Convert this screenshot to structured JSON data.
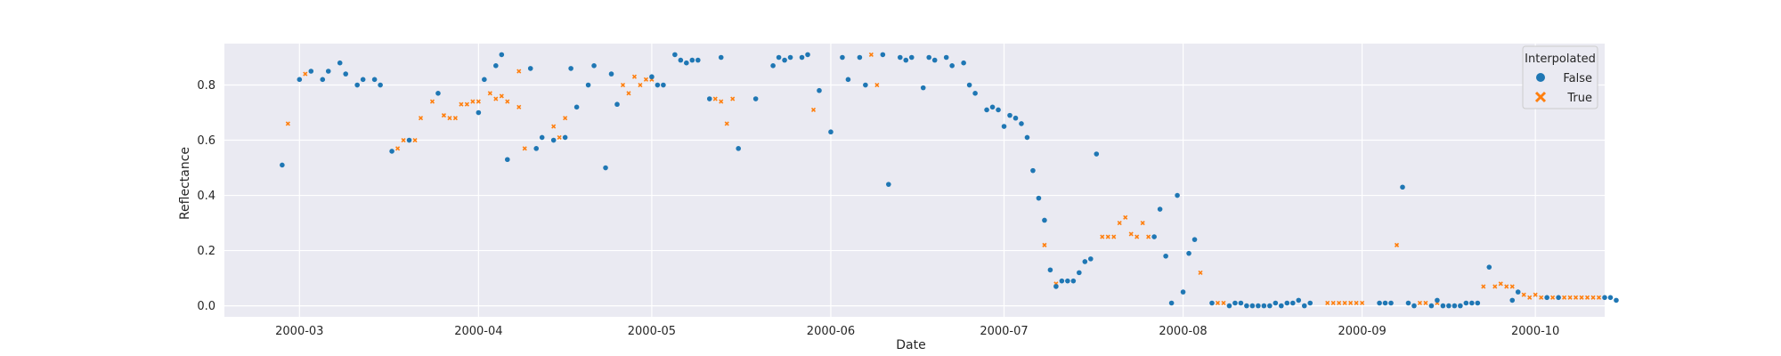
{
  "chart_data": {
    "type": "scatter",
    "title": "",
    "xlabel": "Date",
    "ylabel": "Reflectance",
    "x_ticks": [
      "2000-03",
      "2000-04",
      "2000-05",
      "2000-06",
      "2000-07",
      "2000-08",
      "2000-09",
      "2000-10"
    ],
    "y_ticks": [
      "0.0",
      "0.2",
      "0.4",
      "0.6",
      "0.8"
    ],
    "xlim": [
      "2000-02-17",
      "2000-10-13"
    ],
    "ylim": [
      -0.04,
      0.95
    ],
    "grid": true,
    "legend": {
      "title": "Interpolated",
      "placement": "top-right"
    },
    "series": [
      {
        "name": "False",
        "color": "#1f77b4",
        "marker": "circle",
        "points": [
          [
            "2000-02-27",
            0.51
          ],
          [
            "2000-03-01",
            0.82
          ],
          [
            "2000-03-03",
            0.85
          ],
          [
            "2000-03-05",
            0.82
          ],
          [
            "2000-03-06",
            0.85
          ],
          [
            "2000-03-08",
            0.88
          ],
          [
            "2000-03-09",
            0.84
          ],
          [
            "2000-03-11",
            0.8
          ],
          [
            "2000-03-12",
            0.82
          ],
          [
            "2000-03-14",
            0.82
          ],
          [
            "2000-03-15",
            0.8
          ],
          [
            "2000-03-17",
            0.56
          ],
          [
            "2000-03-20",
            0.6
          ],
          [
            "2000-03-25",
            0.77
          ],
          [
            "2000-04-01",
            0.7
          ],
          [
            "2000-04-02",
            0.82
          ],
          [
            "2000-04-04",
            0.87
          ],
          [
            "2000-04-05",
            0.91
          ],
          [
            "2000-04-06",
            0.53
          ],
          [
            "2000-04-10",
            0.86
          ],
          [
            "2000-04-11",
            0.57
          ],
          [
            "2000-04-12",
            0.61
          ],
          [
            "2000-04-14",
            0.6
          ],
          [
            "2000-04-16",
            0.61
          ],
          [
            "2000-04-17",
            0.86
          ],
          [
            "2000-04-18",
            0.72
          ],
          [
            "2000-04-20",
            0.8
          ],
          [
            "2000-04-21",
            0.87
          ],
          [
            "2000-04-23",
            0.5
          ],
          [
            "2000-04-24",
            0.84
          ],
          [
            "2000-04-25",
            0.73
          ],
          [
            "2000-05-01",
            0.83
          ],
          [
            "2000-05-02",
            0.8
          ],
          [
            "2000-05-03",
            0.8
          ],
          [
            "2000-05-05",
            0.91
          ],
          [
            "2000-05-06",
            0.89
          ],
          [
            "2000-05-07",
            0.88
          ],
          [
            "2000-05-08",
            0.89
          ],
          [
            "2000-05-09",
            0.89
          ],
          [
            "2000-05-11",
            0.75
          ],
          [
            "2000-05-13",
            0.9
          ],
          [
            "2000-05-16",
            0.57
          ],
          [
            "2000-05-19",
            0.75
          ],
          [
            "2000-05-22",
            0.87
          ],
          [
            "2000-05-23",
            0.9
          ],
          [
            "2000-05-24",
            0.89
          ],
          [
            "2000-05-25",
            0.9
          ],
          [
            "2000-05-27",
            0.9
          ],
          [
            "2000-05-28",
            0.91
          ],
          [
            "2000-05-30",
            0.78
          ],
          [
            "2000-06-01",
            0.63
          ],
          [
            "2000-06-03",
            0.9
          ],
          [
            "2000-06-04",
            0.82
          ],
          [
            "2000-06-06",
            0.9
          ],
          [
            "2000-06-07",
            0.8
          ],
          [
            "2000-06-10",
            0.91
          ],
          [
            "2000-06-11",
            0.44
          ],
          [
            "2000-06-13",
            0.9
          ],
          [
            "2000-06-14",
            0.89
          ],
          [
            "2000-06-15",
            0.9
          ],
          [
            "2000-06-17",
            0.79
          ],
          [
            "2000-06-18",
            0.9
          ],
          [
            "2000-06-19",
            0.89
          ],
          [
            "2000-06-21",
            0.9
          ],
          [
            "2000-06-22",
            0.87
          ],
          [
            "2000-06-24",
            0.88
          ],
          [
            "2000-06-25",
            0.8
          ],
          [
            "2000-06-26",
            0.77
          ],
          [
            "2000-06-28",
            0.71
          ],
          [
            "2000-06-29",
            0.72
          ],
          [
            "2000-06-30",
            0.71
          ],
          [
            "2000-07-01",
            0.65
          ],
          [
            "2000-07-02",
            0.69
          ],
          [
            "2000-07-03",
            0.68
          ],
          [
            "2000-07-04",
            0.66
          ],
          [
            "2000-07-05",
            0.61
          ],
          [
            "2000-07-06",
            0.49
          ],
          [
            "2000-07-07",
            0.39
          ],
          [
            "2000-07-08",
            0.31
          ],
          [
            "2000-07-09",
            0.13
          ],
          [
            "2000-07-10",
            0.07
          ],
          [
            "2000-07-11",
            0.09
          ],
          [
            "2000-07-12",
            0.09
          ],
          [
            "2000-07-13",
            0.09
          ],
          [
            "2000-07-14",
            0.12
          ],
          [
            "2000-07-15",
            0.16
          ],
          [
            "2000-07-16",
            0.17
          ],
          [
            "2000-07-17",
            0.55
          ],
          [
            "2000-07-27",
            0.25
          ],
          [
            "2000-07-28",
            0.35
          ],
          [
            "2000-07-29",
            0.18
          ],
          [
            "2000-07-30",
            0.01
          ],
          [
            "2000-07-31",
            0.4
          ],
          [
            "2000-08-01",
            0.05
          ],
          [
            "2000-08-02",
            0.19
          ],
          [
            "2000-08-03",
            0.24
          ],
          [
            "2000-08-06",
            0.01
          ],
          [
            "2000-08-09",
            0.0
          ],
          [
            "2000-08-10",
            0.01
          ],
          [
            "2000-08-11",
            0.01
          ],
          [
            "2000-08-12",
            0.0
          ],
          [
            "2000-08-13",
            0.0
          ],
          [
            "2000-08-14",
            0.0
          ],
          [
            "2000-08-15",
            0.0
          ],
          [
            "2000-08-16",
            0.0
          ],
          [
            "2000-08-17",
            0.01
          ],
          [
            "2000-08-18",
            0.0
          ],
          [
            "2000-08-19",
            0.01
          ],
          [
            "2000-08-20",
            0.01
          ],
          [
            "2000-08-21",
            0.02
          ],
          [
            "2000-08-22",
            0.0
          ],
          [
            "2000-08-23",
            0.01
          ],
          [
            "2000-09-04",
            0.01
          ],
          [
            "2000-09-05",
            0.01
          ],
          [
            "2000-09-06",
            0.01
          ],
          [
            "2000-09-08",
            0.43
          ],
          [
            "2000-09-09",
            0.01
          ],
          [
            "2000-09-10",
            0.0
          ],
          [
            "2000-09-13",
            0.0
          ],
          [
            "2000-09-14",
            0.02
          ],
          [
            "2000-09-15",
            0.0
          ],
          [
            "2000-09-16",
            0.0
          ],
          [
            "2000-09-17",
            0.0
          ],
          [
            "2000-09-18",
            0.0
          ],
          [
            "2000-09-19",
            0.01
          ],
          [
            "2000-09-20",
            0.01
          ],
          [
            "2000-09-21",
            0.01
          ],
          [
            "2000-09-23",
            0.14
          ],
          [
            "2000-09-27",
            0.02
          ],
          [
            "2000-09-28",
            0.05
          ],
          [
            "2000-10-03",
            0.03
          ],
          [
            "2000-10-05",
            0.03
          ],
          [
            "2000-10-13",
            0.03
          ],
          [
            "2000-10-14",
            0.03
          ],
          [
            "2000-10-15",
            0.02
          ]
        ]
      },
      {
        "name": "True",
        "color": "#ff7f0e",
        "marker": "x",
        "points": [
          [
            "2000-02-28",
            0.66
          ],
          [
            "2000-03-02",
            0.84
          ],
          [
            "2000-03-18",
            0.57
          ],
          [
            "2000-03-19",
            0.6
          ],
          [
            "2000-03-21",
            0.6
          ],
          [
            "2000-03-22",
            0.68
          ],
          [
            "2000-03-24",
            0.74
          ],
          [
            "2000-03-26",
            0.69
          ],
          [
            "2000-03-27",
            0.68
          ],
          [
            "2000-03-28",
            0.68
          ],
          [
            "2000-03-29",
            0.73
          ],
          [
            "2000-03-30",
            0.73
          ],
          [
            "2000-03-31",
            0.74
          ],
          [
            "2000-04-01",
            0.74
          ],
          [
            "2000-04-03",
            0.77
          ],
          [
            "2000-04-04",
            0.75
          ],
          [
            "2000-04-05",
            0.76
          ],
          [
            "2000-04-06",
            0.74
          ],
          [
            "2000-04-08",
            0.72
          ],
          [
            "2000-04-08",
            0.85
          ],
          [
            "2000-04-09",
            0.57
          ],
          [
            "2000-04-14",
            0.65
          ],
          [
            "2000-04-15",
            0.61
          ],
          [
            "2000-04-16",
            0.68
          ],
          [
            "2000-04-26",
            0.8
          ],
          [
            "2000-04-27",
            0.77
          ],
          [
            "2000-04-28",
            0.83
          ],
          [
            "2000-04-29",
            0.8
          ],
          [
            "2000-04-30",
            0.82
          ],
          [
            "2000-05-01",
            0.82
          ],
          [
            "2000-05-12",
            0.75
          ],
          [
            "2000-05-13",
            0.74
          ],
          [
            "2000-05-14",
            0.66
          ],
          [
            "2000-05-15",
            0.75
          ],
          [
            "2000-05-29",
            0.71
          ],
          [
            "2000-06-08",
            0.91
          ],
          [
            "2000-06-09",
            0.8
          ],
          [
            "2000-07-08",
            0.22
          ],
          [
            "2000-07-10",
            0.08
          ],
          [
            "2000-07-18",
            0.25
          ],
          [
            "2000-07-19",
            0.25
          ],
          [
            "2000-07-20",
            0.25
          ],
          [
            "2000-07-21",
            0.3
          ],
          [
            "2000-07-22",
            0.32
          ],
          [
            "2000-07-23",
            0.26
          ],
          [
            "2000-07-24",
            0.25
          ],
          [
            "2000-07-25",
            0.3
          ],
          [
            "2000-07-26",
            0.25
          ],
          [
            "2000-08-04",
            0.12
          ],
          [
            "2000-08-07",
            0.01
          ],
          [
            "2000-08-08",
            0.01
          ],
          [
            "2000-08-26",
            0.01
          ],
          [
            "2000-08-27",
            0.01
          ],
          [
            "2000-08-28",
            0.01
          ],
          [
            "2000-08-29",
            0.01
          ],
          [
            "2000-08-30",
            0.01
          ],
          [
            "2000-08-31",
            0.01
          ],
          [
            "2000-09-01",
            0.01
          ],
          [
            "2000-09-07",
            0.22
          ],
          [
            "2000-09-11",
            0.01
          ],
          [
            "2000-09-12",
            0.01
          ],
          [
            "2000-09-14",
            0.01
          ],
          [
            "2000-09-22",
            0.07
          ],
          [
            "2000-09-24",
            0.07
          ],
          [
            "2000-09-25",
            0.08
          ],
          [
            "2000-09-26",
            0.07
          ],
          [
            "2000-09-27",
            0.07
          ],
          [
            "2000-09-29",
            0.04
          ],
          [
            "2000-09-30",
            0.03
          ],
          [
            "2000-10-01",
            0.04
          ],
          [
            "2000-10-02",
            0.03
          ],
          [
            "2000-10-04",
            0.03
          ],
          [
            "2000-10-06",
            0.03
          ],
          [
            "2000-10-07",
            0.03
          ],
          [
            "2000-10-08",
            0.03
          ],
          [
            "2000-10-09",
            0.03
          ],
          [
            "2000-10-10",
            0.03
          ],
          [
            "2000-10-11",
            0.03
          ],
          [
            "2000-10-12",
            0.03
          ]
        ]
      }
    ]
  }
}
